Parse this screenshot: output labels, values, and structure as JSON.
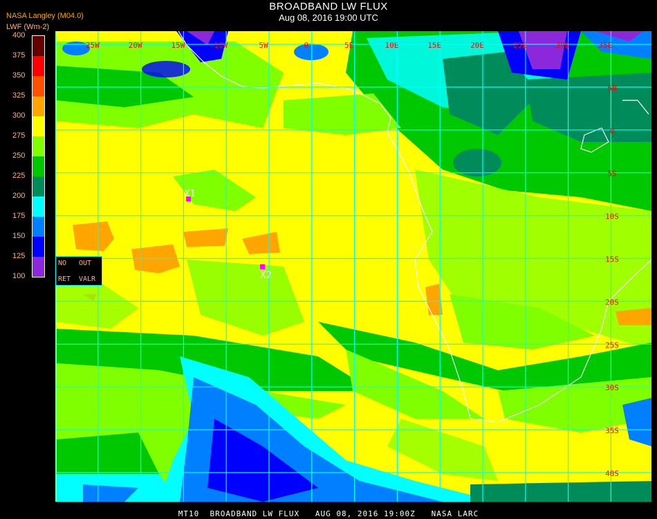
{
  "header": {
    "title": "BROADBAND LW FLUX",
    "subtitle": "Aug 08, 2016 19:00 UTC"
  },
  "legend": {
    "source": "NASA Langley (M04.0)",
    "units": "LWF (Wm-2)",
    "ticks": [
      "400",
      "375",
      "350",
      "325",
      "300",
      "275",
      "250",
      "225",
      "200",
      "175",
      "150",
      "125",
      "100"
    ],
    "colors": [
      "#640000",
      "#ff0000",
      "#ff5000",
      "#ffa500",
      "#ffff00",
      "#80ff00",
      "#00c800",
      "#008c5a",
      "#00ffff",
      "#0080ff",
      "#0000ff",
      "#8c28dc"
    ]
  },
  "nodata_box": {
    "no": "NO",
    "out": "OUT",
    "ret": "RET",
    "valr": "VALR"
  },
  "map": {
    "lon_labels": [
      "25W",
      "20W",
      "15W",
      "10W",
      "5W",
      "0",
      "5E",
      "10E",
      "15E",
      "20E",
      "25E",
      "30E",
      "35E"
    ],
    "lat_labels": [
      "5N",
      "0",
      "5S",
      "10S",
      "15S",
      "20S",
      "25S",
      "30S",
      "35S",
      "40S"
    ],
    "markers": [
      {
        "label": "X1"
      },
      {
        "label": "X2"
      }
    ],
    "grid_color": "#00ffff",
    "label_color": "#ff0000",
    "marker_color": "#ff00ff"
  },
  "footer": "MT10  BROADBAND LW FLUX   AUG 08, 2016 19:00Z   NASA LARC"
}
